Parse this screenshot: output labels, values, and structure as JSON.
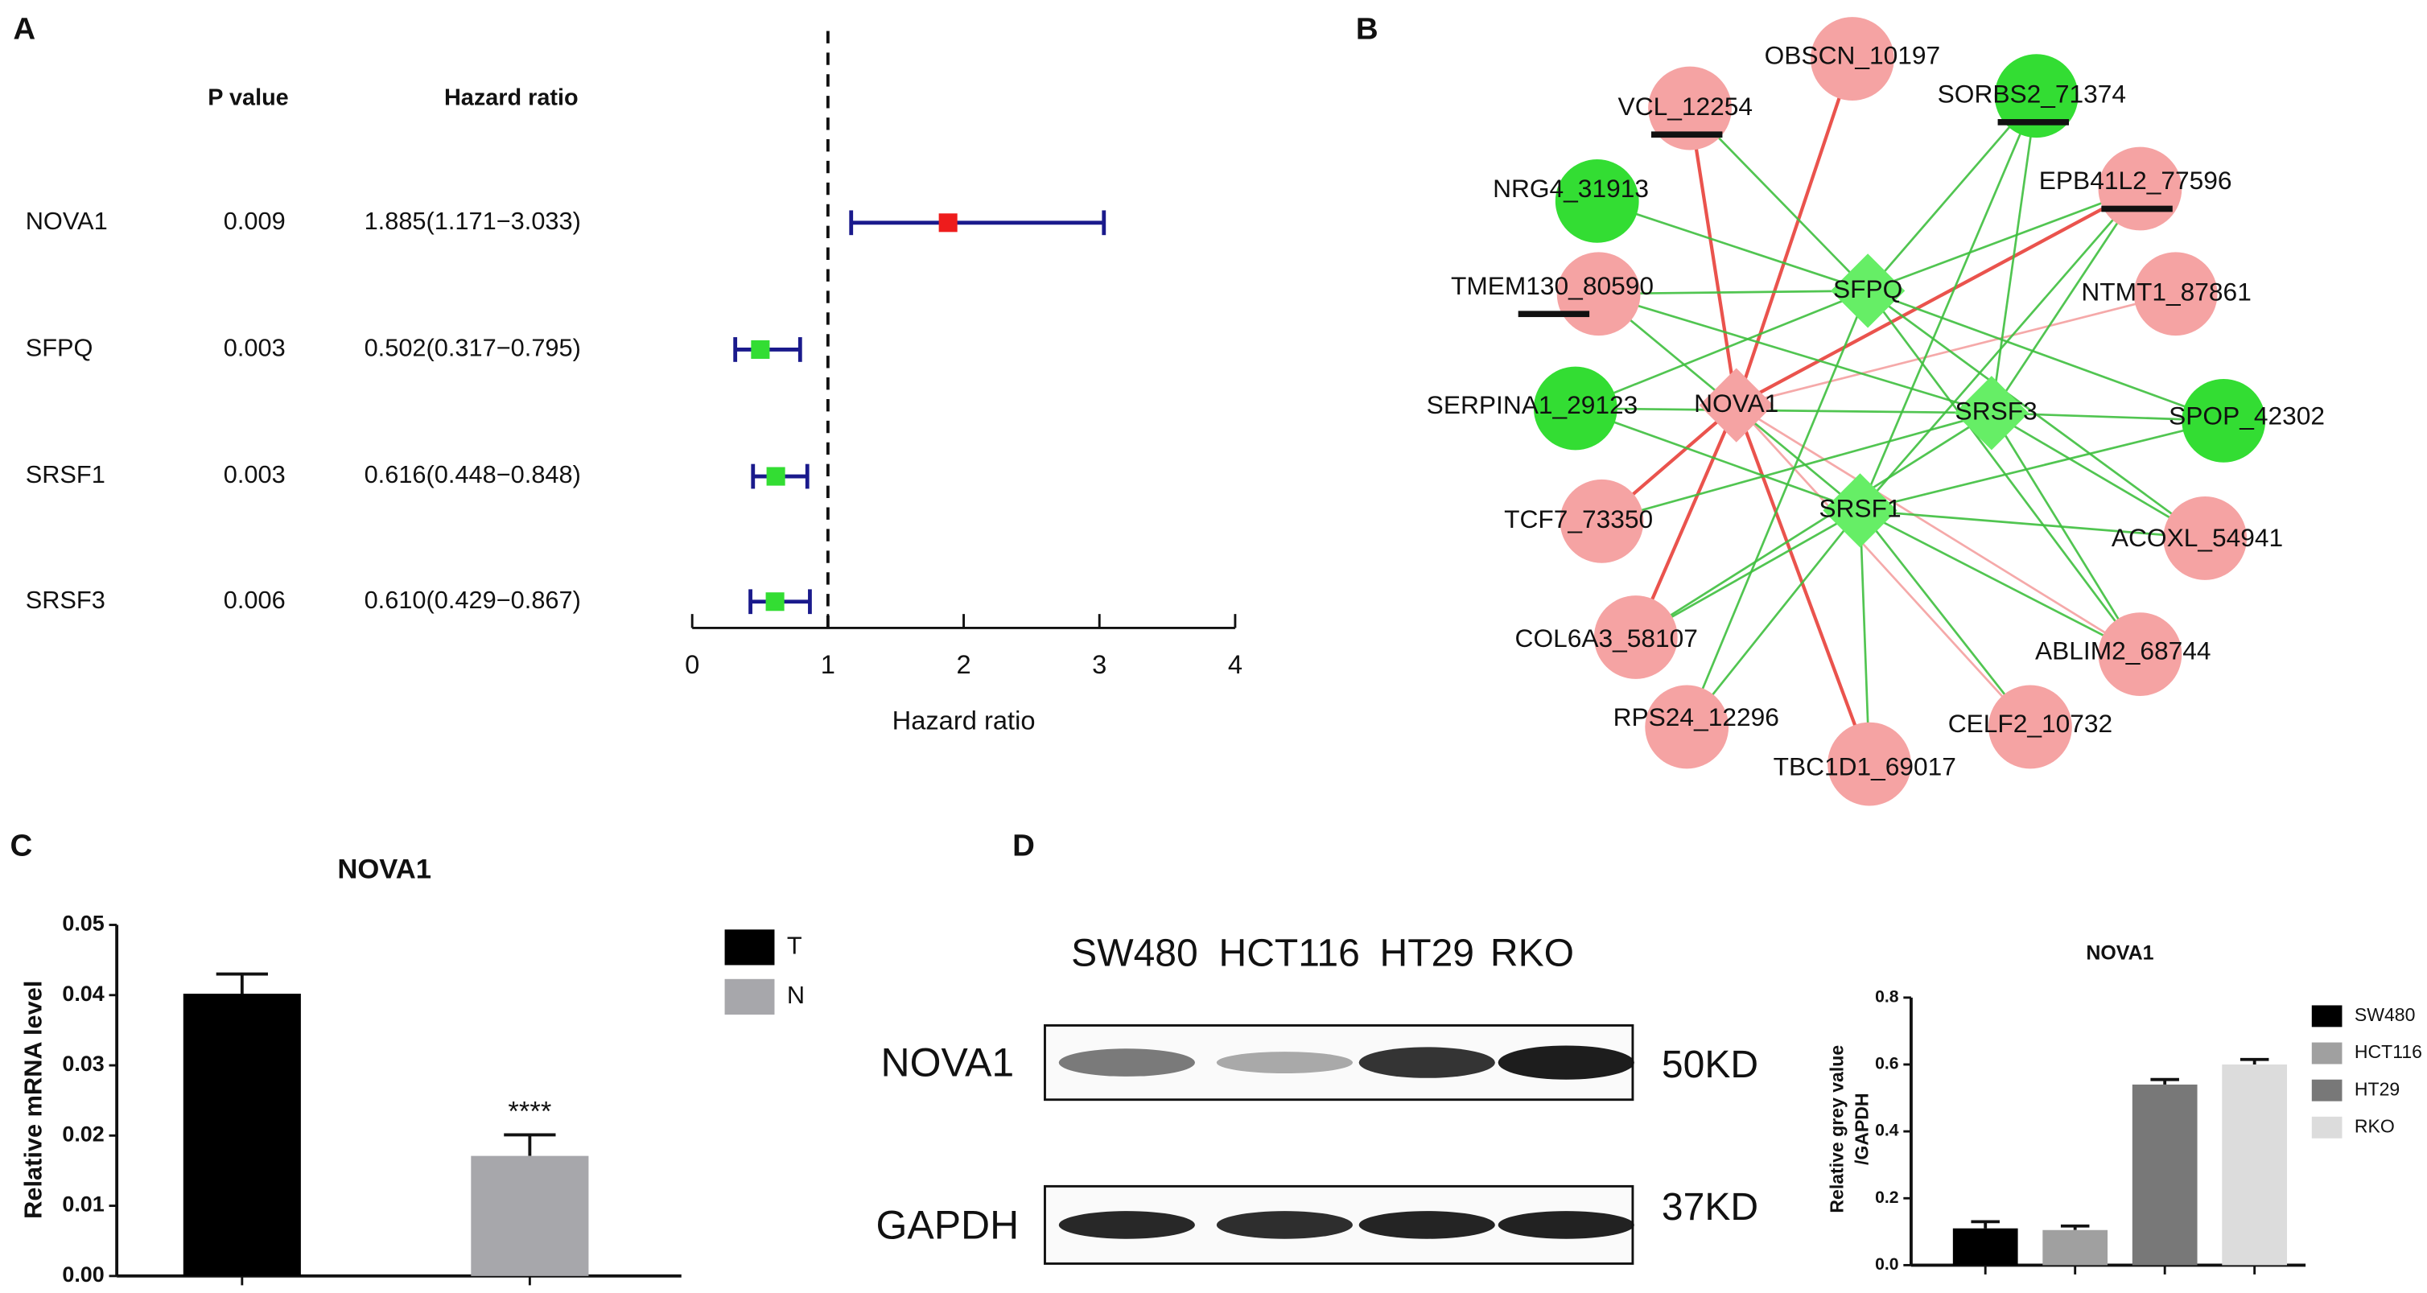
{
  "panels": [
    "A",
    "B",
    "C",
    "D"
  ],
  "chart_data": [
    {
      "type": "forest",
      "columns": [
        "P value",
        "Hazard ratio"
      ],
      "categories": [
        "NOVA1",
        "SFPQ",
        "SRSF1",
        "SRSF3"
      ],
      "p_values": [
        0.009,
        0.003,
        0.003,
        0.006
      ],
      "values": [
        1.885,
        0.502,
        0.616,
        0.61
      ],
      "lower": [
        1.171,
        0.317,
        0.448,
        0.429
      ],
      "upper": [
        3.033,
        0.795,
        0.848,
        0.867
      ],
      "value_labels": [
        "1.885(1.171−3.033)",
        "0.502(0.317−0.795)",
        "0.616(0.448−0.848)",
        "0.610(0.429−0.867)"
      ],
      "colors": [
        "#ee1c1c",
        "#33dd33",
        "#33dd33",
        "#33dd33"
      ],
      "whisker_color": "#1a1a8c",
      "reference_line": 1,
      "xlabel": "Hazard ratio",
      "xlim": [
        0,
        4
      ],
      "xticks": [
        0,
        1,
        2,
        3,
        4
      ]
    },
    {
      "type": "bar",
      "title": "NOVA1",
      "ylabel": "Relative mRNA level",
      "series": [
        {
          "name": "T",
          "color": "#000000",
          "values": [
            0.0402
          ],
          "errors": [
            0.0028
          ]
        },
        {
          "name": "N",
          "color": "#a7a7ab",
          "values": [
            0.0171
          ],
          "errors": [
            0.003
          ],
          "annotation": "****"
        }
      ],
      "ylim": [
        0,
        0.05
      ],
      "yticks": [
        {
          "value": 0,
          "label": "0.00"
        },
        {
          "value": 0.01,
          "label": "0.01"
        },
        {
          "value": 0.02,
          "label": "0.02"
        },
        {
          "value": 0.03,
          "label": "0.03"
        },
        {
          "value": 0.04,
          "label": "0.04"
        },
        {
          "value": 0.05,
          "label": "0.05"
        }
      ]
    },
    {
      "type": "bar",
      "title": "NOVA1",
      "ylabel": [
        "Relative grey value",
        "/GAPDH"
      ],
      "series": [
        {
          "name": "SW480",
          "color": "#000000",
          "values": [
            0.11
          ],
          "errors": [
            0.02
          ]
        },
        {
          "name": "HCT116",
          "color": "#a0a0a0",
          "values": [
            0.105
          ],
          "errors": [
            0.012
          ]
        },
        {
          "name": "HT29",
          "color": "#787878",
          "values": [
            0.54
          ],
          "errors": [
            0.015
          ]
        },
        {
          "name": "RKO",
          "color": "#dcdcdc",
          "values": [
            0.6
          ],
          "errors": [
            0.015
          ]
        }
      ],
      "ylim": [
        0,
        0.8
      ],
      "yticks": [
        {
          "value": 0,
          "label": "0.0"
        },
        0.2,
        0.4,
        0.6,
        0.8
      ]
    }
  ],
  "network": {
    "nodes": [
      {
        "label": "OBSCN_10197",
        "color": "#f5a3a3"
      },
      {
        "label": "SORBS2_71374",
        "color": "#33dd33",
        "underlined": true
      },
      {
        "label": "VCL_12254",
        "color": "#f5a3a3",
        "underlined": true
      },
      {
        "label": "EPB41L2_77596",
        "color": "#f5a3a3",
        "underlined": true
      },
      {
        "label": "NRG4_31913",
        "color": "#33dd33"
      },
      {
        "label": "NTMT1_87861",
        "color": "#f5a3a3"
      },
      {
        "label": "TMEM130_80590",
        "color": "#f5a3a3",
        "underlined": true
      },
      {
        "label": "SERPINA1_29123",
        "color": "#33dd33"
      },
      {
        "label": "SPOP_42302",
        "color": "#33dd33"
      },
      {
        "label": "TCF7_73350",
        "color": "#f5a3a3"
      },
      {
        "label": "ACOXL_54941",
        "color": "#f5a3a3"
      },
      {
        "label": "COL6A3_58107",
        "color": "#f5a3a3"
      },
      {
        "label": "ABLIM2_68744",
        "color": "#f5a3a3"
      },
      {
        "label": "RPS24_12296",
        "color": "#f5a3a3"
      },
      {
        "label": "CELF2_10732",
        "color": "#f5a3a3"
      },
      {
        "label": "TBC1D1_69017",
        "color": "#f5a3a3"
      },
      {
        "label": "SFPQ",
        "color": "#66ee66",
        "shape": "diamond"
      },
      {
        "label": "NOVA1",
        "color": "#f5a3a3",
        "shape": "diamond"
      },
      {
        "label": "SRSF3",
        "color": "#66ee66",
        "shape": "diamond"
      },
      {
        "label": "SRSF1",
        "color": "#66ee66",
        "shape": "diamond"
      }
    ],
    "edges": [
      [
        17,
        2,
        "#e8413a"
      ],
      [
        17,
        0,
        "#e8413a"
      ],
      [
        17,
        3,
        "#e8413a"
      ],
      [
        17,
        15,
        "#e8413a"
      ],
      [
        17,
        9,
        "#e8413a"
      ],
      [
        17,
        11,
        "#e8413a"
      ],
      [
        17,
        14,
        "#f4a0a0"
      ],
      [
        17,
        12,
        "#f4a0a0"
      ],
      [
        17,
        5,
        "#f4a0a0"
      ],
      [
        16,
        1,
        "#3fbf3f"
      ],
      [
        16,
        2,
        "#3fbf3f"
      ],
      [
        16,
        4,
        "#3fbf3f"
      ],
      [
        16,
        6,
        "#3fbf3f"
      ],
      [
        16,
        7,
        "#3fbf3f"
      ],
      [
        16,
        8,
        "#3fbf3f"
      ],
      [
        16,
        10,
        "#3fbf3f"
      ],
      [
        16,
        12,
        "#3fbf3f"
      ],
      [
        16,
        13,
        "#3fbf3f"
      ],
      [
        16,
        3,
        "#3fbf3f"
      ],
      [
        18,
        3,
        "#3fbf3f"
      ],
      [
        18,
        6,
        "#3fbf3f"
      ],
      [
        18,
        8,
        "#3fbf3f"
      ],
      [
        18,
        10,
        "#3fbf3f"
      ],
      [
        18,
        12,
        "#3fbf3f"
      ],
      [
        18,
        9,
        "#3fbf3f"
      ],
      [
        18,
        11,
        "#3fbf3f"
      ],
      [
        18,
        7,
        "#3fbf3f"
      ],
      [
        18,
        1,
        "#3fbf3f"
      ],
      [
        19,
        3,
        "#3fbf3f"
      ],
      [
        19,
        6,
        "#3fbf3f"
      ],
      [
        19,
        7,
        "#3fbf3f"
      ],
      [
        19,
        10,
        "#3fbf3f"
      ],
      [
        19,
        11,
        "#3fbf3f"
      ],
      [
        19,
        12,
        "#3fbf3f"
      ],
      [
        19,
        13,
        "#3fbf3f"
      ],
      [
        19,
        14,
        "#3fbf3f"
      ],
      [
        19,
        15,
        "#3fbf3f"
      ],
      [
        19,
        1,
        "#3fbf3f"
      ],
      [
        19,
        8,
        "#3fbf3f"
      ]
    ]
  },
  "blot": {
    "lanes": [
      "SW480",
      "HCT116",
      "HT29",
      "RKO"
    ],
    "rows": [
      {
        "label": "NOVA1",
        "size": "50KD"
      },
      {
        "label": "GAPDH",
        "size": "37KD"
      }
    ]
  }
}
